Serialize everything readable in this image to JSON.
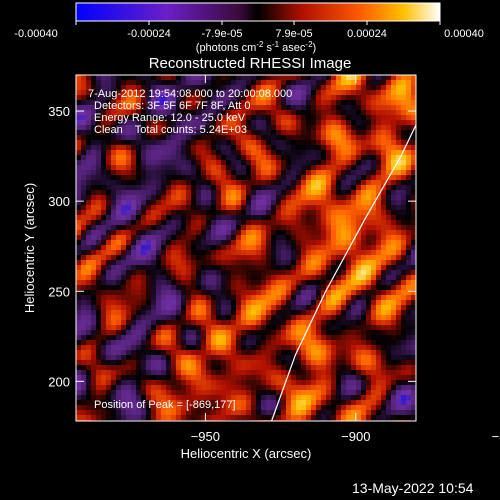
{
  "colorbar": {
    "ticks": [
      "-0.00040",
      "-0.00024",
      "-7.9e-05",
      "7.9e-05",
      "0.00024",
      "0.00040"
    ],
    "units": "(photons cm",
    "units_sup1": "-2",
    "units_mid": " s",
    "units_sup2": "-1",
    "units_end": " asec",
    "units_sup3": "-2",
    "units_close": ")"
  },
  "chart_data": {
    "type": "heatmap",
    "title": "Reconstructed RHESSI Image",
    "xlabel": "Heliocentric X (arcsec)",
    "ylabel": "Heliocentric Y (arcsec)",
    "xlim": [
      -993,
      -880
    ],
    "ylim": [
      178,
      370
    ],
    "xticks": [
      -950,
      -900,
      -850
    ],
    "yticks": [
      200,
      250,
      300,
      350
    ],
    "colorbar_range": [
      -0.0004,
      0.0004
    ],
    "colormap": [
      "#0000ff",
      "#7030a0",
      "#4b1e6e",
      "#000000",
      "#b01000",
      "#ff6000",
      "#ffc000",
      "#ffffff"
    ],
    "limb_curve": [
      [
        -928,
        178
      ],
      [
        -920,
        215
      ],
      [
        -910,
        250
      ],
      [
        -897,
        290
      ],
      [
        -885,
        325
      ],
      [
        -872,
        370
      ]
    ],
    "peak": [
      -869,
      177
    ],
    "annotations": [
      "7-Aug-2012 19:54:08.000 to 20:00:08.000",
      "Detectors: 3F 5F 6F 7F 8F, Att 0",
      "Energy Range: 12.0 - 25.0 keV",
      "Clean    Total counts: 5.24E+03",
      "Position of Peak = [-869,177]"
    ]
  },
  "footer": {
    "timestamp": "13-May-2022 10:54"
  }
}
